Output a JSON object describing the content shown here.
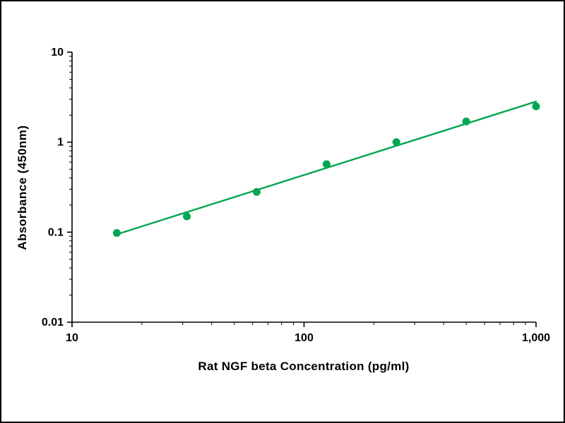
{
  "chart_data": {
    "type": "scatter",
    "x": [
      15.6,
      31.25,
      62.5,
      125,
      250,
      500,
      1000
    ],
    "y": [
      0.098,
      0.15,
      0.28,
      0.57,
      1.0,
      1.7,
      2.5
    ],
    "title": "",
    "xlabel": "Rat NGF beta Concentration (pg/ml)",
    "ylabel": "Absorbance (450nm)",
    "xscale": "log",
    "yscale": "log",
    "xlim": [
      10,
      1000
    ],
    "ylim": [
      0.01,
      10
    ],
    "x_tick_values": [
      10,
      100,
      1000
    ],
    "x_tick_labels": [
      "10",
      "100",
      "1,000"
    ],
    "y_tick_values": [
      0.01,
      0.1,
      1,
      10
    ],
    "y_tick_labels": [
      "0.01",
      "0.1",
      "1",
      "10"
    ],
    "grid": false,
    "legend": "none",
    "trendline": true,
    "line_color": "#00A651",
    "marker_color": "#00A651",
    "axis_color": "#000000"
  }
}
